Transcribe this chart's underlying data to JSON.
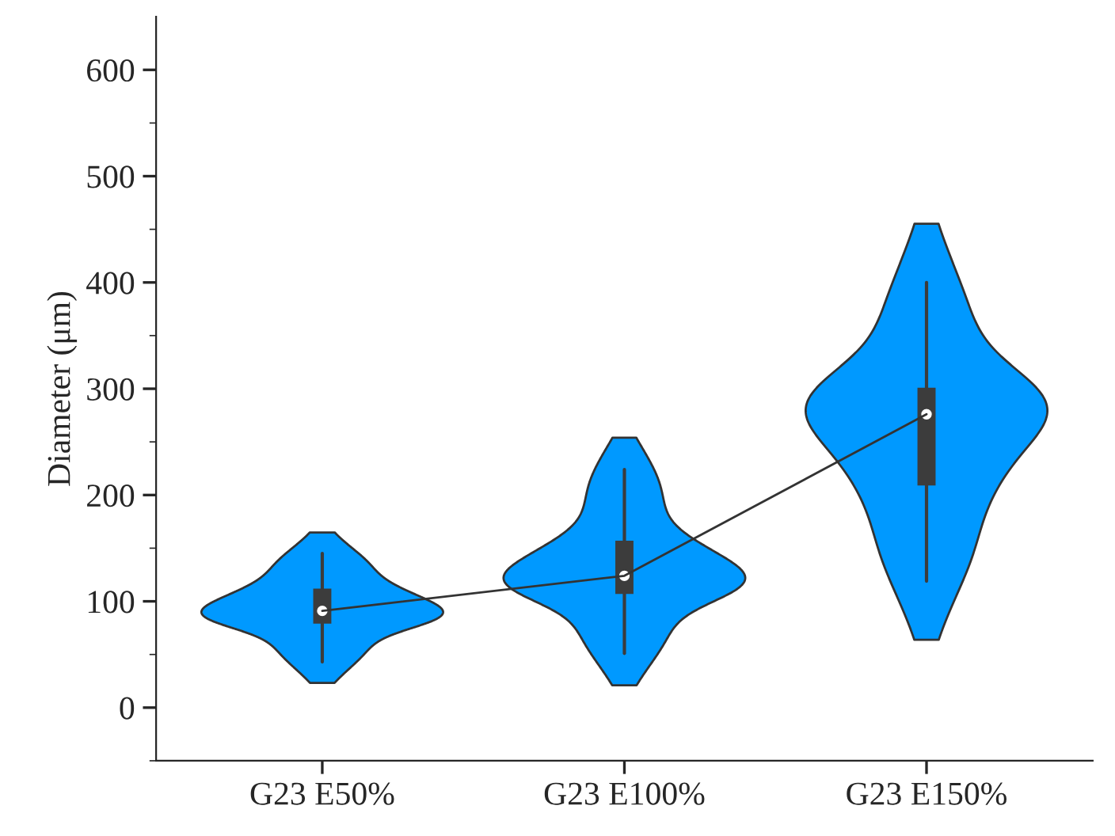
{
  "chart_data": {
    "type": "box",
    "ylabel": "Diameter (μm)",
    "categories": [
      "G23 E50%",
      "G23 E100%",
      "G23 E150%"
    ],
    "boxes": [
      {
        "low": 43,
        "q1": 79,
        "median": 91,
        "q3": 112,
        "high": 145
      },
      {
        "low": 51,
        "q1": 107,
        "median": 124,
        "q3": 157,
        "high": 224
      },
      {
        "low": 119,
        "q1": 209,
        "median": 276,
        "q3": 301,
        "high": 400
      }
    ],
    "color": "#3c3c3c",
    "series": [
      {
        "type": "line",
        "color": "#333333",
        "values": [
          91,
          124,
          276
        ]
      }
    ],
    "ylim": [
      -50,
      650
    ],
    "yticks": [
      0,
      100,
      200,
      300,
      400,
      500,
      600
    ],
    "grid": false
  }
}
